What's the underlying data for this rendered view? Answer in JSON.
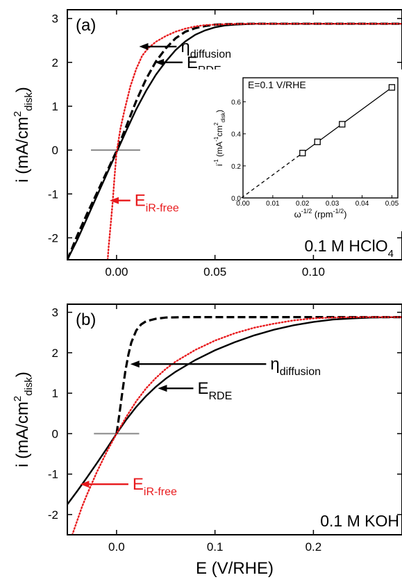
{
  "chart_data": [
    {
      "type": "line",
      "panel_label": "(a)",
      "ylabel": "i (mA/cm",
      "ylabel_sup": "2",
      "ylabel_sub": "disk",
      "ylabel_close": ")",
      "xlim": [
        -0.025,
        0.145
      ],
      "ylim": [
        -2.5,
        3.2
      ],
      "xticks": [
        0.0,
        0.05,
        0.1
      ],
      "xtick_labels": [
        "0.00",
        "0.05",
        "0.10"
      ],
      "yticks": [
        -2,
        -1,
        0,
        1,
        2,
        3
      ],
      "ytick_labels": [
        "-2",
        "-1",
        "0",
        "1",
        "2",
        "3"
      ],
      "electrolyte": "0.1 M HClO",
      "electrolyte_sub": "4",
      "series": [
        {
          "key": "eta_diffusion",
          "style": "dashed",
          "color": "#000000",
          "x": [
            -0.025,
            -0.02,
            -0.015,
            -0.01,
            -0.005,
            0.0,
            0.005,
            0.01,
            0.015,
            0.02,
            0.025,
            0.03,
            0.035,
            0.04,
            0.045,
            0.05,
            0.055,
            0.06,
            0.07,
            0.08,
            0.1,
            0.12,
            0.145
          ],
          "y": [
            -2.5,
            -1.95,
            -1.45,
            -0.98,
            -0.5,
            -0.02,
            0.55,
            1.12,
            1.62,
            2.02,
            2.32,
            2.55,
            2.7,
            2.78,
            2.83,
            2.86,
            2.87,
            2.875,
            2.88,
            2.88,
            2.88,
            2.88,
            2.88
          ]
        },
        {
          "key": "E_RDE",
          "style": "solid",
          "color": "#000000",
          "x": [
            -0.025,
            -0.02,
            -0.015,
            -0.01,
            -0.005,
            0.0,
            0.005,
            0.01,
            0.015,
            0.02,
            0.025,
            0.03,
            0.035,
            0.04,
            0.045,
            0.05,
            0.055,
            0.06,
            0.07,
            0.08,
            0.1,
            0.12,
            0.145
          ],
          "y": [
            -2.5,
            -2.05,
            -1.55,
            -1.05,
            -0.55,
            -0.05,
            0.45,
            0.93,
            1.35,
            1.72,
            2.02,
            2.28,
            2.48,
            2.63,
            2.73,
            2.8,
            2.84,
            2.86,
            2.88,
            2.88,
            2.88,
            2.88,
            2.88
          ]
        },
        {
          "key": "E_iR_free",
          "style": "dotted",
          "color": "#e8191c",
          "x": [
            -0.0045,
            -0.004,
            -0.003,
            -0.002,
            -0.001,
            0.0,
            0.002,
            0.004,
            0.007,
            0.01,
            0.013,
            0.016,
            0.02,
            0.025,
            0.03,
            0.035,
            0.04,
            0.045,
            0.05,
            0.055,
            0.06,
            0.07,
            0.08,
            0.1,
            0.12,
            0.145
          ],
          "y": [
            -2.5,
            -2.2,
            -1.7,
            -1.2,
            -0.6,
            -0.05,
            0.5,
            0.9,
            1.45,
            1.85,
            2.15,
            2.32,
            2.47,
            2.6,
            2.7,
            2.77,
            2.82,
            2.85,
            2.86,
            2.87,
            2.875,
            2.88,
            2.88,
            2.88,
            2.88,
            2.88
          ]
        }
      ],
      "annotations": [
        {
          "key": "eta",
          "label": "η",
          "sub": "diffusion",
          "color": "#000000"
        },
        {
          "key": "erde",
          "label": "E",
          "sub": "RDE",
          "color": "#000000"
        },
        {
          "key": "eir",
          "label": "E",
          "sub": "iR-free",
          "color": "#e8191c"
        }
      ],
      "inset": {
        "type": "scatter",
        "title": "E=0.1 V/RHE",
        "xlabel": "ω",
        "xlabel_sup": "-1/2",
        "xlabel_rest": " (rpm",
        "xlabel_rest_sup": "-1/2",
        "xlabel_close": ")",
        "ylabel_parts": [
          "i",
          "-1",
          " (mA",
          "-1",
          "cm",
          "2",
          "disk",
          ")"
        ],
        "xlim": [
          0.0,
          0.052
        ],
        "ylim": [
          0.0,
          0.75
        ],
        "xticks": [
          0.0,
          0.01,
          0.02,
          0.03,
          0.04,
          0.05
        ],
        "xtick_labels": [
          "0.00",
          "0.01",
          "0.02",
          "0.03",
          "0.04",
          "0.05"
        ],
        "yticks": [
          0.0,
          0.2,
          0.4,
          0.6
        ],
        "ytick_labels": [
          "0.0",
          "0.2",
          "0.4",
          "0.6"
        ],
        "points_x": [
          0.02,
          0.025,
          0.0333,
          0.05
        ],
        "points_y": [
          0.28,
          0.35,
          0.46,
          0.69
        ]
      }
    },
    {
      "type": "line",
      "panel_label": "(b)",
      "ylabel": "i (mA/cm",
      "ylabel_sup": "2",
      "ylabel_sub": "disk",
      "ylabel_close": ")",
      "xlabel": "E (V/RHE)",
      "xlim": [
        -0.05,
        0.29
      ],
      "ylim": [
        -2.5,
        3.2
      ],
      "xticks": [
        0.0,
        0.1,
        0.2
      ],
      "xtick_labels": [
        "0.0",
        "0.1",
        "0.2"
      ],
      "yticks": [
        -2,
        -1,
        0,
        1,
        2,
        3
      ],
      "ytick_labels": [
        "-2",
        "-1",
        "0",
        "1",
        "2",
        "3"
      ],
      "electrolyte": "0.1 M KOH",
      "series": [
        {
          "key": "eta_diffusion",
          "style": "dashed",
          "color": "#000000",
          "x": [
            0.0,
            0.003,
            0.006,
            0.009,
            0.012,
            0.015,
            0.02,
            0.025,
            0.03,
            0.04,
            0.05,
            0.07,
            0.1,
            0.15,
            0.2,
            0.25,
            0.29
          ],
          "y": [
            0.0,
            0.5,
            1.05,
            1.55,
            1.95,
            2.25,
            2.55,
            2.7,
            2.78,
            2.84,
            2.87,
            2.88,
            2.88,
            2.88,
            2.88,
            2.88,
            2.88
          ]
        },
        {
          "key": "E_RDE",
          "style": "solid",
          "color": "#000000",
          "x": [
            -0.05,
            -0.04,
            -0.03,
            -0.02,
            -0.01,
            0.0,
            0.01,
            0.02,
            0.03,
            0.04,
            0.05,
            0.06,
            0.08,
            0.1,
            0.12,
            0.14,
            0.16,
            0.18,
            0.2,
            0.22,
            0.24,
            0.26,
            0.29
          ],
          "y": [
            -1.75,
            -1.42,
            -1.08,
            -0.73,
            -0.37,
            0.0,
            0.35,
            0.66,
            0.93,
            1.16,
            1.36,
            1.53,
            1.82,
            2.06,
            2.26,
            2.43,
            2.57,
            2.68,
            2.76,
            2.82,
            2.85,
            2.87,
            2.88
          ]
        },
        {
          "key": "E_iR_free",
          "style": "dotted",
          "color": "#e8191c",
          "x": [
            -0.045,
            -0.04,
            -0.035,
            -0.03,
            -0.02,
            -0.01,
            0.0,
            0.01,
            0.02,
            0.03,
            0.04,
            0.05,
            0.06,
            0.08,
            0.1,
            0.12,
            0.14,
            0.16,
            0.18,
            0.2,
            0.22,
            0.25,
            0.29
          ],
          "y": [
            -2.5,
            -2.15,
            -1.8,
            -1.5,
            -0.95,
            -0.45,
            0.0,
            0.42,
            0.8,
            1.12,
            1.38,
            1.6,
            1.78,
            2.07,
            2.3,
            2.48,
            2.62,
            2.72,
            2.8,
            2.85,
            2.87,
            2.88,
            2.88
          ]
        }
      ],
      "annotations": [
        {
          "key": "eta",
          "label": "η",
          "sub": "diffusion",
          "color": "#000000"
        },
        {
          "key": "erde",
          "label": "E",
          "sub": "RDE",
          "color": "#000000"
        },
        {
          "key": "eir",
          "label": "E",
          "sub": "iR-free",
          "color": "#e8191c"
        }
      ]
    }
  ]
}
